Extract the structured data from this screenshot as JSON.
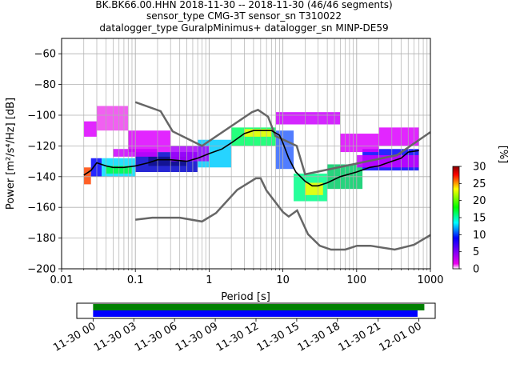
{
  "title_lines": [
    "BK.BK66.00.HHN   2018-11-30 -- 2018-11-30  (46/46 segments)",
    "sensor_type CMG-3T sensor_sn T310022",
    "datalogger_type GuralpMinimus+ datalogger_sn MINP-DE59"
  ],
  "chart_data": {
    "type": "heatmap",
    "xlabel": "Period [s]",
    "ylabel": "Power [m²/s⁴/Hz] [dB]",
    "xscale": "log",
    "xlim": [
      0.01,
      1000
    ],
    "ylim": [
      -200,
      -50
    ],
    "xticks": [
      0.01,
      0.1,
      1,
      10,
      100,
      1000
    ],
    "xtick_labels": [
      "0.01",
      "0.1",
      "1",
      "10",
      "100",
      "1000"
    ],
    "yticks": [
      -200,
      -180,
      -160,
      -140,
      -120,
      -100,
      -80,
      -60
    ],
    "ytick_labels": [
      "−200",
      "−180",
      "−160",
      "−140",
      "−120",
      "−100",
      "−80",
      "−60"
    ],
    "grid": true,
    "colorbar": {
      "label": "[%]",
      "range": [
        0,
        30
      ],
      "ticks": [
        0,
        5,
        10,
        15,
        20,
        25,
        30
      ],
      "tick_labels": [
        "0",
        "5",
        "10",
        "15",
        "20",
        "25",
        "30"
      ],
      "colors": [
        "#ffffff",
        "#ee00ee",
        "#0000ff",
        "#00ffff",
        "#00ff00",
        "#ffff00",
        "#ff0000",
        "#880000"
      ]
    },
    "mode_curve": {
      "name": "mode",
      "color": "#000000",
      "points": [
        [
          0.02,
          -139
        ],
        [
          0.025,
          -136
        ],
        [
          0.03,
          -131
        ],
        [
          0.04,
          -133
        ],
        [
          0.05,
          -134
        ],
        [
          0.07,
          -134
        ],
        [
          0.1,
          -133
        ],
        [
          0.15,
          -131
        ],
        [
          0.2,
          -129
        ],
        [
          0.3,
          -129
        ],
        [
          0.5,
          -130
        ],
        [
          0.7,
          -128
        ],
        [
          1,
          -125
        ],
        [
          1.5,
          -122
        ],
        [
          2,
          -118
        ],
        [
          3,
          -112
        ],
        [
          4,
          -110
        ],
        [
          5,
          -110
        ],
        [
          7,
          -110
        ],
        [
          9,
          -113
        ],
        [
          10,
          -118
        ],
        [
          12,
          -128
        ],
        [
          15,
          -137
        ],
        [
          20,
          -143
        ],
        [
          25,
          -146
        ],
        [
          30,
          -146
        ],
        [
          40,
          -144
        ],
        [
          60,
          -140
        ],
        [
          100,
          -137
        ],
        [
          150,
          -134
        ],
        [
          200,
          -133
        ],
        [
          300,
          -130
        ],
        [
          400,
          -128
        ],
        [
          500,
          -124
        ],
        [
          700,
          -123
        ]
      ]
    },
    "noise_models": [
      {
        "name": "NHNM",
        "color": "#666666",
        "points": [
          [
            0.1,
            -91.5
          ],
          [
            0.22,
            -97.4
          ],
          [
            0.32,
            -110.5
          ],
          [
            0.8,
            -120
          ],
          [
            3.8,
            -98
          ],
          [
            4.6,
            -96.5
          ],
          [
            6.3,
            -101
          ],
          [
            7.9,
            -113.5
          ],
          [
            15.4,
            -120
          ],
          [
            20,
            -138.5
          ],
          [
            354,
            -126
          ],
          [
            1000,
            -111
          ]
        ]
      },
      {
        "name": "NLNM",
        "color": "#666666",
        "points": [
          [
            0.1,
            -168
          ],
          [
            0.17,
            -166.7
          ],
          [
            0.4,
            -166.7
          ],
          [
            0.8,
            -169.2
          ],
          [
            1.24,
            -163.7
          ],
          [
            2.4,
            -148.6
          ],
          [
            4.3,
            -141.1
          ],
          [
            5,
            -141.1
          ],
          [
            6,
            -149
          ],
          [
            10,
            -163
          ],
          [
            12,
            -166
          ],
          [
            15.6,
            -162
          ],
          [
            21.9,
            -177.5
          ],
          [
            31.6,
            -185
          ],
          [
            45,
            -187.5
          ],
          [
            70,
            -187.5
          ],
          [
            101,
            -185
          ],
          [
            154,
            -185
          ],
          [
            328,
            -187.5
          ],
          [
            600,
            -184.4
          ],
          [
            1000,
            -178
          ]
        ]
      }
    ],
    "heatmap_bands": [
      {
        "x0": 0.02,
        "x1": 0.025,
        "y0": -145,
        "y1": -134,
        "color": "#ff4400"
      },
      {
        "x0": 0.025,
        "x1": 0.035,
        "y0": -140,
        "y1": -128,
        "color": "#0000ff"
      },
      {
        "x0": 0.035,
        "x1": 0.1,
        "y0": -140,
        "y1": -128,
        "color": "#00ddff"
      },
      {
        "x0": 0.04,
        "x1": 0.09,
        "y0": -138,
        "y1": -133,
        "color": "#00ff44"
      },
      {
        "x0": 0.1,
        "x1": 0.7,
        "y0": -137,
        "y1": -124,
        "color": "#0000cc"
      },
      {
        "x0": 0.15,
        "x1": 0.5,
        "y0": -133,
        "y1": -127,
        "color": "#111188"
      },
      {
        "x0": 0.7,
        "x1": 2,
        "y0": -134,
        "y1": -116,
        "color": "#00ccff"
      },
      {
        "x0": 2,
        "x1": 8,
        "y0": -120,
        "y1": -108,
        "color": "#00ff66"
      },
      {
        "x0": 3,
        "x1": 7,
        "y0": -114,
        "y1": -109,
        "color": "#ffff00"
      },
      {
        "x0": 8,
        "x1": 14,
        "y0": -135,
        "y1": -110,
        "color": "#3366ff"
      },
      {
        "x0": 14,
        "x1": 40,
        "y0": -156,
        "y1": -138,
        "color": "#00ff88"
      },
      {
        "x0": 20,
        "x1": 35,
        "y0": -152,
        "y1": -144,
        "color": "#ffff00"
      },
      {
        "x0": 40,
        "x1": 120,
        "y0": -148,
        "y1": -132,
        "color": "#00cc66"
      },
      {
        "x0": 120,
        "x1": 700,
        "y0": -136,
        "y1": -122,
        "color": "#0000ff"
      },
      {
        "x0": 0.02,
        "x1": 0.03,
        "y0": -114,
        "y1": -104,
        "color": "#dd00ff"
      },
      {
        "x0": 0.03,
        "x1": 0.08,
        "y0": -110,
        "y1": -94,
        "color": "#ee44ee"
      },
      {
        "x0": 0.08,
        "x1": 0.3,
        "y0": -124,
        "y1": -110,
        "color": "#dd00ff"
      },
      {
        "x0": 0.05,
        "x1": 0.2,
        "y0": -127,
        "y1": -122,
        "color": "#cc00ff"
      },
      {
        "x0": 0.3,
        "x1": 1,
        "y0": -130,
        "y1": -120,
        "color": "#aa00ff"
      },
      {
        "x0": 8,
        "x1": 60,
        "y0": -106,
        "y1": -98,
        "color": "#cc00ff"
      },
      {
        "x0": 60,
        "x1": 200,
        "y0": -124,
        "y1": -112,
        "color": "#dd00ff"
      },
      {
        "x0": 200,
        "x1": 700,
        "y0": -120,
        "y1": -108,
        "color": "#dd00ff"
      },
      {
        "x0": 100,
        "x1": 700,
        "y0": -134,
        "y1": -126,
        "color": "#cc00ff"
      }
    ]
  },
  "timeline": {
    "tick_labels": [
      "11-30 00",
      "11-30 03",
      "11-30 06",
      "11-30 09",
      "11-30 12",
      "11-30 15",
      "11-30 18",
      "11-30 21",
      "12-01 00"
    ],
    "range_hours": [
      -1.2,
      25.2
    ],
    "bars": [
      {
        "name": "data-coverage-bar",
        "start_h": 0,
        "end_h": 24.4,
        "color": "#008000"
      },
      {
        "name": "psd-coverage-bar",
        "start_h": 0,
        "end_h": 23.9,
        "color": "#0000ff"
      }
    ]
  }
}
